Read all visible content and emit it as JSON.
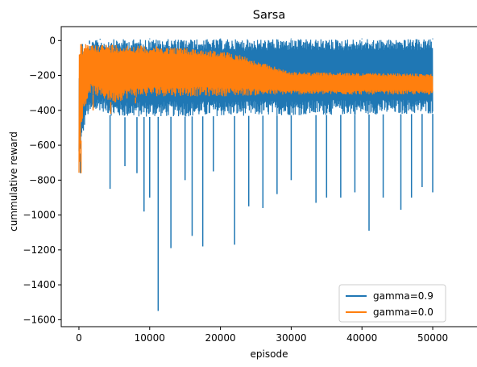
{
  "chart_data": {
    "type": "line",
    "title": "Sarsa",
    "xlabel": "episode",
    "ylabel": "cummulative reward",
    "xlim": [
      -2500,
      52500
    ],
    "ylim": [
      -1640,
      80
    ],
    "xticks": [
      0,
      10000,
      20000,
      30000,
      40000,
      50000
    ],
    "yticks": [
      0,
      -200,
      -400,
      -600,
      -800,
      -1000,
      -1200,
      -1400,
      -1600
    ],
    "legend_position": "lower right",
    "series": [
      {
        "name": "gamma=0.9",
        "color": "#1f77b4",
        "band_upper": [
          [
            0,
            -200
          ],
          [
            1000,
            -40
          ],
          [
            2000,
            0
          ],
          [
            3000,
            5
          ],
          [
            5000,
            8
          ],
          [
            50000,
            8
          ]
        ],
        "band_lower": [
          [
            0,
            -700
          ],
          [
            1000,
            -440
          ],
          [
            2000,
            -420
          ],
          [
            3000,
            -400
          ],
          [
            5000,
            -440
          ],
          [
            50000,
            -420
          ]
        ],
        "spikes_down": [
          [
            200,
            -760
          ],
          [
            4400,
            -850
          ],
          [
            6500,
            -720
          ],
          [
            8200,
            -760
          ],
          [
            9200,
            -980
          ],
          [
            10000,
            -900
          ],
          [
            11200,
            -1550
          ],
          [
            13000,
            -1190
          ],
          [
            15000,
            -800
          ],
          [
            16000,
            -1120
          ],
          [
            17500,
            -1180
          ],
          [
            19000,
            -750
          ],
          [
            22000,
            -1170
          ],
          [
            24000,
            -950
          ],
          [
            26000,
            -960
          ],
          [
            28000,
            -880
          ],
          [
            30000,
            -800
          ],
          [
            33500,
            -930
          ],
          [
            35000,
            -900
          ],
          [
            37000,
            -900
          ],
          [
            39000,
            -870
          ],
          [
            41000,
            -1090
          ],
          [
            43000,
            -900
          ],
          [
            45500,
            -970
          ],
          [
            47000,
            -900
          ],
          [
            48500,
            -840
          ],
          [
            50000,
            -870
          ]
        ],
        "spikes_up": [
          [
            500,
            -20
          ],
          [
            1500,
            0
          ],
          [
            3000,
            10
          ],
          [
            10000,
            12
          ],
          [
            20000,
            12
          ],
          [
            30000,
            12
          ],
          [
            40000,
            12
          ],
          [
            50000,
            12
          ]
        ]
      },
      {
        "name": "gamma=0.0",
        "color": "#ff7f0e",
        "band_upper": [
          [
            0,
            -10
          ],
          [
            500,
            -20
          ],
          [
            2000,
            -20
          ],
          [
            5000,
            -20
          ],
          [
            10000,
            -30
          ],
          [
            15000,
            -40
          ],
          [
            20000,
            -60
          ],
          [
            23000,
            -80
          ],
          [
            25000,
            -120
          ],
          [
            27000,
            -140
          ],
          [
            30000,
            -180
          ],
          [
            50000,
            -190
          ]
        ],
        "band_lower": [
          [
            0,
            -760
          ],
          [
            500,
            -450
          ],
          [
            1500,
            -300
          ],
          [
            3000,
            -330
          ],
          [
            5000,
            -360
          ],
          [
            7000,
            -330
          ],
          [
            10000,
            -320
          ],
          [
            20000,
            -320
          ],
          [
            30000,
            -310
          ],
          [
            50000,
            -310
          ]
        ],
        "spikes_down": [
          [
            300,
            -760
          ],
          [
            2000,
            -400
          ],
          [
            4500,
            -420
          ],
          [
            8000,
            -360
          ]
        ]
      }
    ]
  }
}
